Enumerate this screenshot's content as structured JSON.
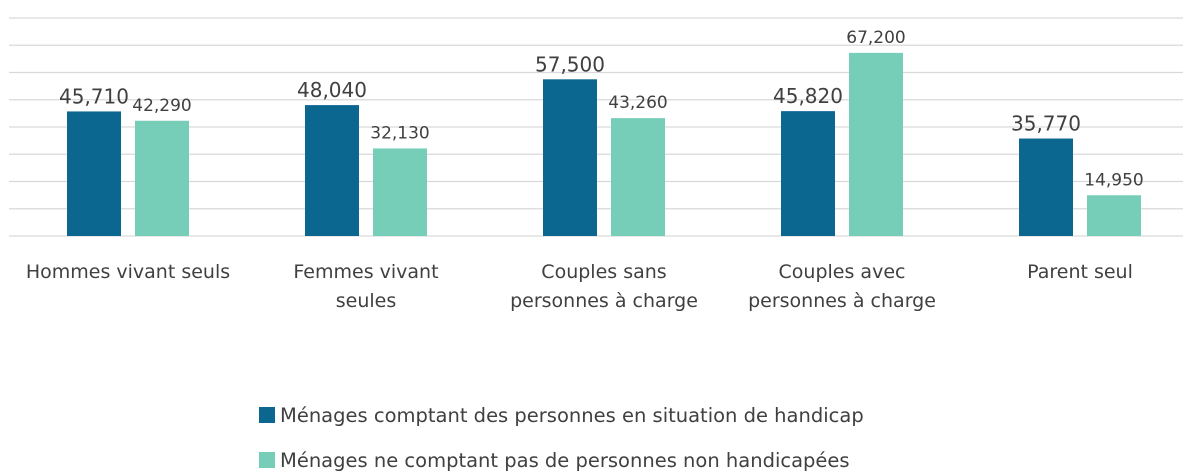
{
  "chart_data": {
    "type": "bar",
    "categories": [
      "Hommes vivant seuls",
      "Femmes vivant seules",
      "Couples sans personnes à charge",
      "Couples avec personnes à charge",
      "Parent seul"
    ],
    "series": [
      {
        "name": "Ménages comptant des personnes en situation de handicap",
        "color": "#0b6690",
        "values": [
          45710,
          48040,
          57500,
          45820,
          35770
        ],
        "value_labels": [
          "45,710",
          "48,040",
          "57,500",
          "45,820",
          "35,770"
        ]
      },
      {
        "name": "Ménages ne comptant pas de personnes non handicapées",
        "color": "#76cdb8",
        "values": [
          42290,
          32130,
          43260,
          67200,
          14950
        ],
        "value_labels": [
          "42,290",
          "32,130",
          "43,260",
          "67,200",
          "14,950"
        ]
      }
    ],
    "ylim": [
      0,
      80000
    ],
    "yticks": [
      0,
      10000,
      20000,
      30000,
      40000,
      50000,
      60000,
      70000,
      80000
    ],
    "grid": true
  }
}
